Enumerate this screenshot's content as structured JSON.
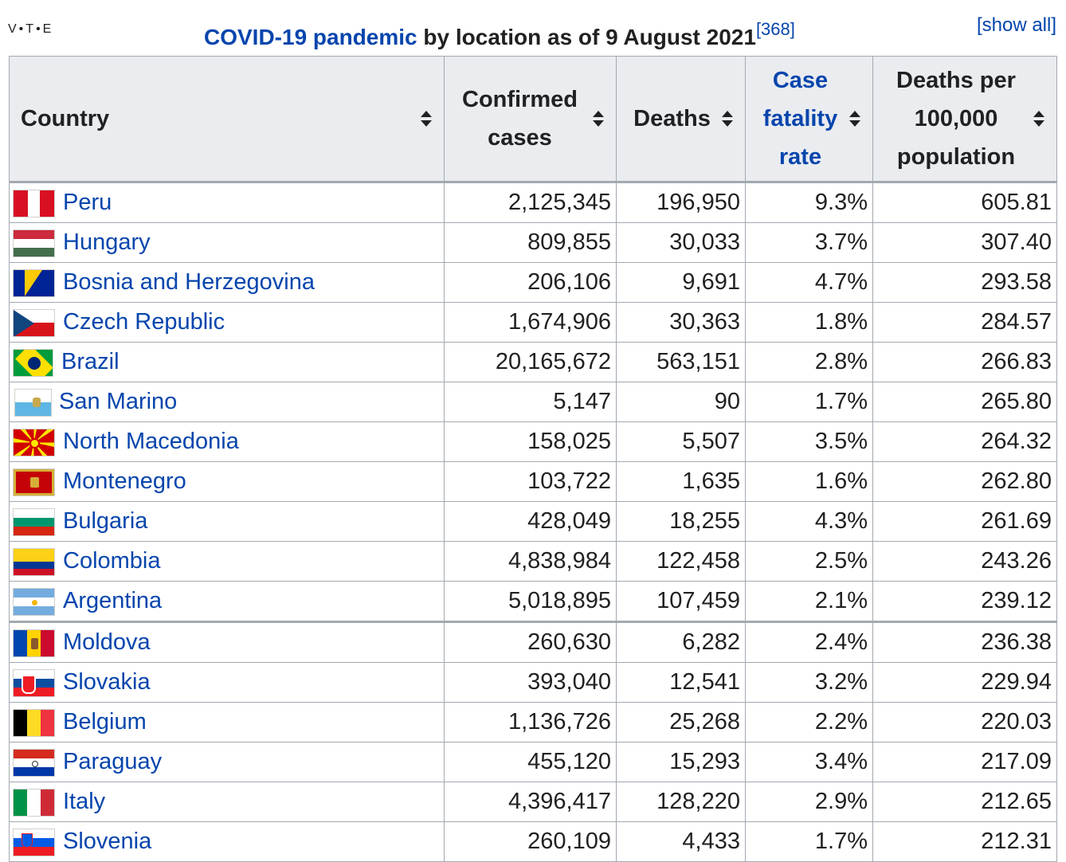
{
  "navbox": {
    "v": "V",
    "t": "T",
    "e": "E",
    "dot": "•"
  },
  "caption": {
    "link_text": "COVID-19 pandemic",
    "rest": " by location as of 9 August 2021",
    "ref": "[368]"
  },
  "show_all": "[show all]",
  "headers": {
    "country": "Country",
    "confirmed": "Confirmed cases",
    "deaths": "Deaths",
    "cfr": "Case fatality rate",
    "per100k": "Deaths per 100,000 population"
  },
  "rows": [
    {
      "country": "Peru",
      "flag": "peru",
      "cases": "2,125,345",
      "deaths": "196,950",
      "cfr": "9.3%",
      "per100k": "605.81"
    },
    {
      "country": "Hungary",
      "flag": "hungary",
      "cases": "809,855",
      "deaths": "30,033",
      "cfr": "3.7%",
      "per100k": "307.40"
    },
    {
      "country": "Bosnia and Herzegovina",
      "flag": "bosnia",
      "cases": "206,106",
      "deaths": "9,691",
      "cfr": "4.7%",
      "per100k": "293.58"
    },
    {
      "country": "Czech Republic",
      "flag": "czech",
      "cases": "1,674,906",
      "deaths": "30,363",
      "cfr": "1.8%",
      "per100k": "284.57"
    },
    {
      "country": "Brazil",
      "flag": "brazil",
      "cases": "20,165,672",
      "deaths": "563,151",
      "cfr": "2.8%",
      "per100k": "266.83"
    },
    {
      "country": "San Marino",
      "flag": "sanmarino",
      "cases": "5,147",
      "deaths": "90",
      "cfr": "1.7%",
      "per100k": "265.80"
    },
    {
      "country": "North Macedonia",
      "flag": "macedonia",
      "cases": "158,025",
      "deaths": "5,507",
      "cfr": "3.5%",
      "per100k": "264.32"
    },
    {
      "country": "Montenegro",
      "flag": "montenegro",
      "cases": "103,722",
      "deaths": "1,635",
      "cfr": "1.6%",
      "per100k": "262.80"
    },
    {
      "country": "Bulgaria",
      "flag": "bulgaria",
      "cases": "428,049",
      "deaths": "18,255",
      "cfr": "4.3%",
      "per100k": "261.69"
    },
    {
      "country": "Colombia",
      "flag": "colombia",
      "cases": "4,838,984",
      "deaths": "122,458",
      "cfr": "2.5%",
      "per100k": "243.26"
    },
    {
      "country": "Argentina",
      "flag": "argentina",
      "cases": "5,018,895",
      "deaths": "107,459",
      "cfr": "2.1%",
      "per100k": "239.12"
    },
    {
      "country": "Moldova",
      "flag": "moldova",
      "cases": "260,630",
      "deaths": "6,282",
      "cfr": "2.4%",
      "per100k": "236.38"
    },
    {
      "country": "Slovakia",
      "flag": "slovakia",
      "cases": "393,040",
      "deaths": "12,541",
      "cfr": "3.2%",
      "per100k": "229.94"
    },
    {
      "country": "Belgium",
      "flag": "belgium",
      "cases": "1,136,726",
      "deaths": "25,268",
      "cfr": "2.2%",
      "per100k": "220.03"
    },
    {
      "country": "Paraguay",
      "flag": "paraguay",
      "cases": "455,120",
      "deaths": "15,293",
      "cfr": "3.4%",
      "per100k": "217.09"
    },
    {
      "country": "Italy",
      "flag": "italy",
      "cases": "4,396,417",
      "deaths": "128,220",
      "cfr": "2.9%",
      "per100k": "212.65"
    },
    {
      "country": "Slovenia",
      "flag": "slovenia",
      "cases": "260,109",
      "deaths": "4,433",
      "cfr": "1.7%",
      "per100k": "212.31"
    }
  ],
  "colors": {
    "link": "#0645ad",
    "header_bg": "#eaecf0",
    "border": "#a2a9b1"
  }
}
